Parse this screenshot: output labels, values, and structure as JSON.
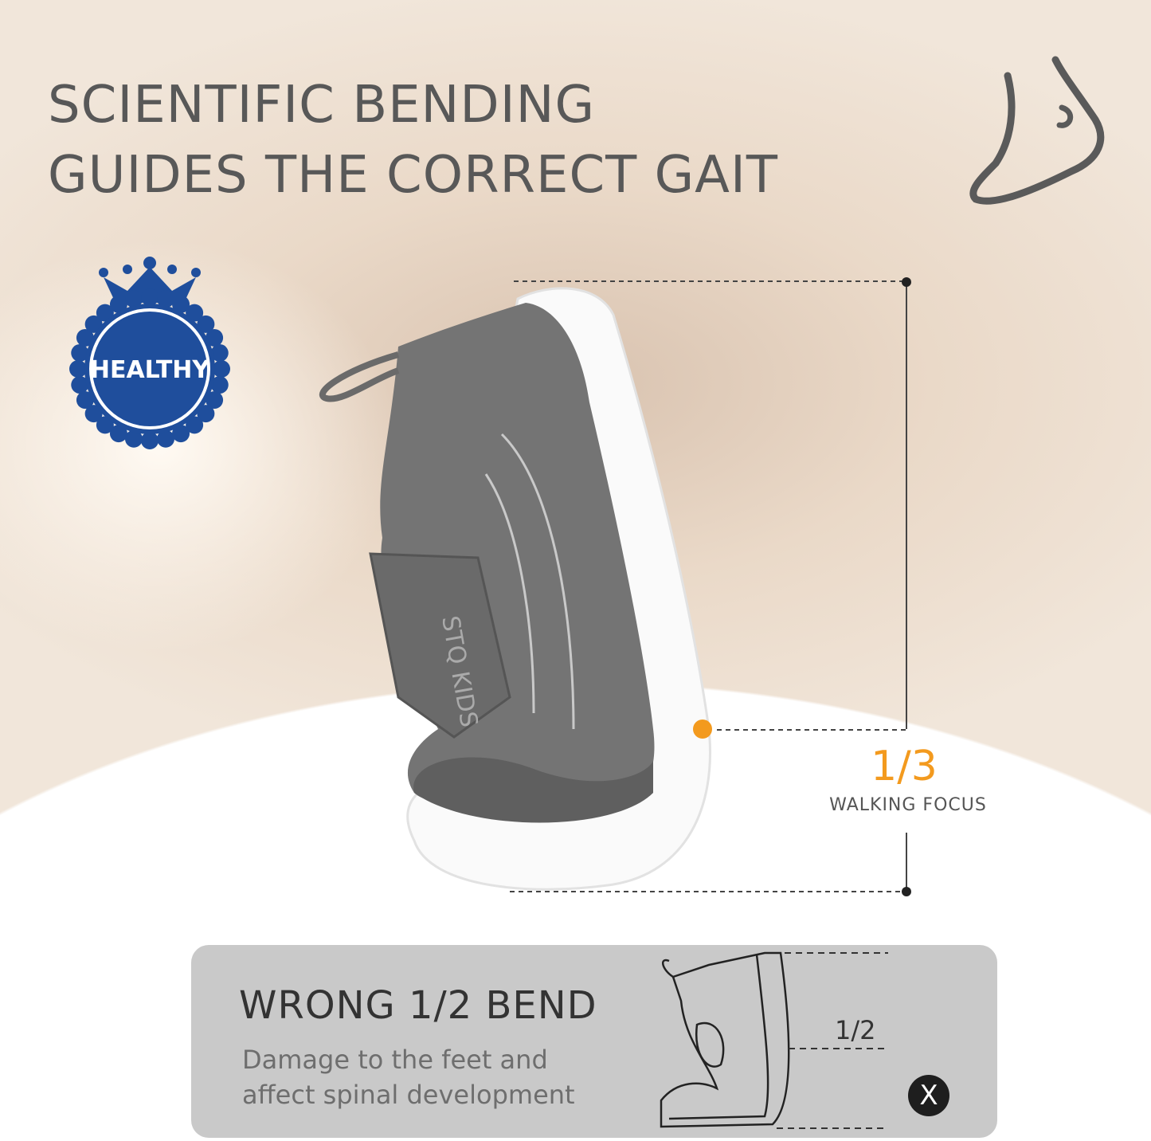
{
  "headline": {
    "line1": "SCIENTIFIC BENDING",
    "line2": "GUIDES THE CORRECT GAIT"
  },
  "badge": {
    "label": "HEALTHY",
    "color": "#1f4e9c"
  },
  "shoe": {
    "brand_text": "STQ KIDS"
  },
  "measure": {
    "fraction": "1/3",
    "label": "WALKING FOCUS",
    "accent": "#f39a1e"
  },
  "wrong_panel": {
    "title": "WRONG 1/2 BEND",
    "description_line1": "Damage to the feet and",
    "description_line2": "affect spinal development",
    "fraction": "1/2",
    "mark": "X"
  },
  "icons": [
    "foot-icon",
    "healthy-badge-icon",
    "close-x-icon"
  ]
}
